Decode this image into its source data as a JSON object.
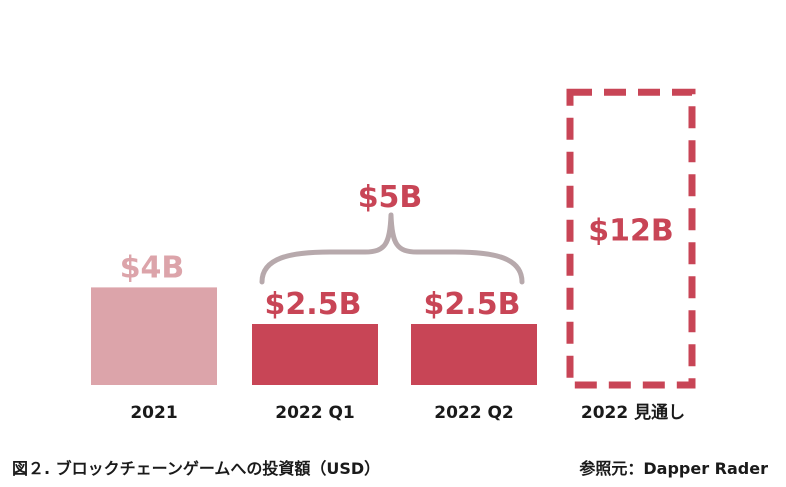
{
  "colors": {
    "faded": "#dca4aa",
    "accent": "#c84556",
    "bracket": "#b7a9ac",
    "text": "#1a1a1a"
  },
  "chart_data": {
    "type": "bar",
    "unit": "USD billions",
    "categories": [
      "2021",
      "2022 Q1",
      "2022 Q2",
      "2022 見通し"
    ],
    "values": [
      4,
      2.5,
      2.5,
      12
    ],
    "labels": [
      "$4B",
      "$2.5B",
      "$2.5B",
      "$12B"
    ],
    "styles": [
      "faded",
      "solid",
      "solid",
      "dashed-outline"
    ],
    "annotations": [
      {
        "text": "$5B",
        "spans": [
          "2022 Q1",
          "2022 Q2"
        ],
        "type": "brace"
      }
    ],
    "title": "",
    "xlabel": "",
    "ylabel": ""
  },
  "caption": "図２. ブロックチェーンゲームへの投資額（USD）",
  "source": "参照元：Dapper Rader"
}
